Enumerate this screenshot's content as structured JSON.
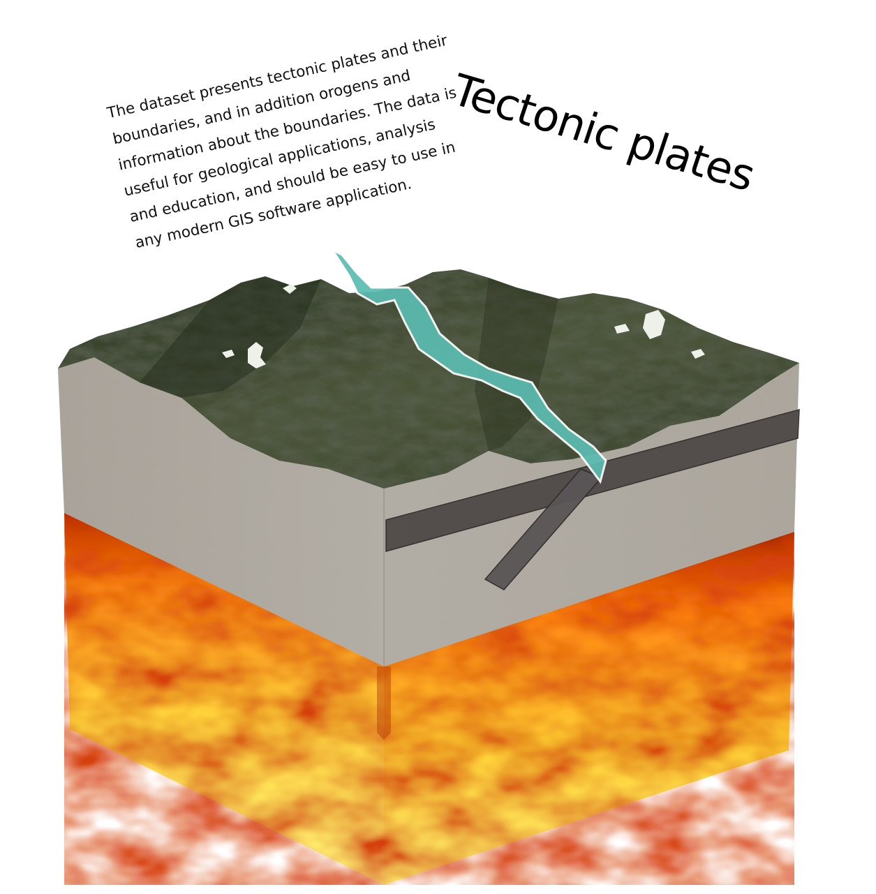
{
  "title": "Tectonic plates",
  "description_lines": [
    "The dataset presents tectonic plates and their",
    "boundaries, and in addition orogens and",
    "information about the boundaries. The data is",
    "useful for geological applications, analysis",
    "and education, and should be easy to use in",
    "any modern GIS software application."
  ],
  "colors": {
    "magma_hot": "#fff06a",
    "magma_mid": "#ff9d1c",
    "magma_dark": "#c83a08",
    "crust": "#a8a298",
    "terrain": "#3c4630",
    "boundary": "#4fb8ae",
    "slab": "#4e4848"
  }
}
